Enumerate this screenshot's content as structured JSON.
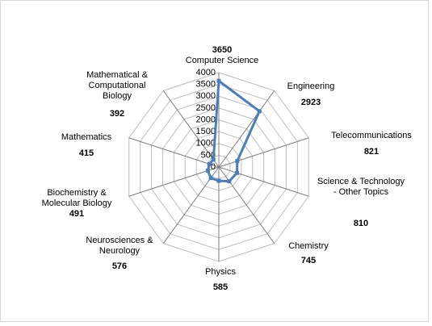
{
  "chart_data": {
    "type": "radar",
    "categories": [
      "Computer Science",
      "Engineering",
      "Telecommunications",
      "Science & Technology - Other Topics",
      "Chemistry",
      "Physics",
      "Neurosciences & Neurology",
      "Biochemistry & Molecular Biology",
      "Mathematics",
      "Mathematical & Computational Biology"
    ],
    "values": [
      3650,
      2923,
      821,
      810,
      745,
      585,
      576,
      491,
      415,
      392
    ],
    "color": "#4a7ebb",
    "ylim": [
      0,
      4000
    ],
    "yticks": [
      0,
      500,
      1000,
      1500,
      2000,
      2500,
      3000,
      3500,
      4000
    ],
    "grid": true
  }
}
